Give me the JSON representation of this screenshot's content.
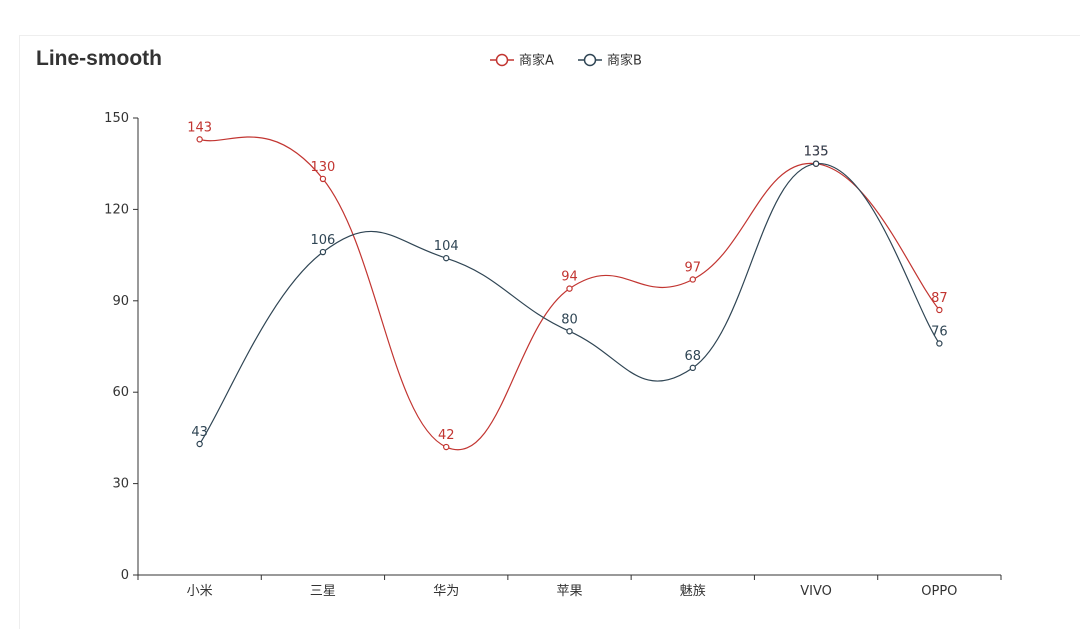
{
  "chart_data": {
    "type": "line",
    "smooth": true,
    "title": "Line-smooth",
    "categories": [
      "小米",
      "三星",
      "华为",
      "苹果",
      "魅族",
      "VIVO",
      "OPPO"
    ],
    "series": [
      {
        "name": "商家A",
        "color": "#c23531",
        "values": [
          143,
          130,
          42,
          94,
          97,
          135,
          87
        ]
      },
      {
        "name": "商家B",
        "color": "#2f4554",
        "values": [
          43,
          106,
          104,
          80,
          68,
          135,
          76
        ]
      }
    ],
    "ylim": [
      0,
      150
    ],
    "yticks": [
      0,
      30,
      60,
      90,
      120,
      150
    ],
    "legend_position": "top-center",
    "grid": false
  }
}
